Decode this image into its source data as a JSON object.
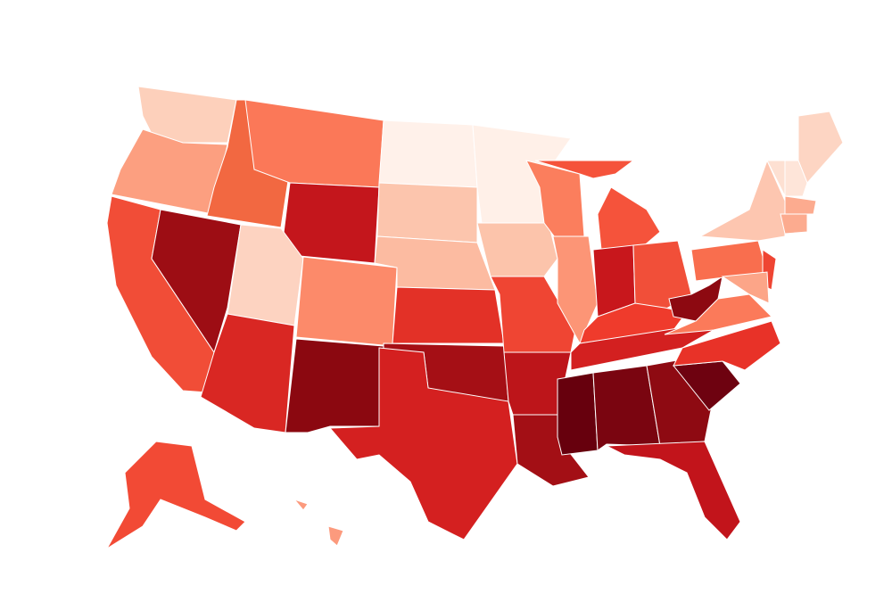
{
  "map": {
    "background": "#ffffff",
    "border_color": "#ffffff",
    "regions": [
      {
        "color": "#fdd0bb"
      },
      {
        "color": "#fc9f80"
      },
      {
        "color": "#f14d37"
      },
      {
        "color": "#9d0d14"
      },
      {
        "color": "#f26841"
      },
      {
        "color": "#fb7858"
      },
      {
        "color": "#c4161c"
      },
      {
        "color": "#fdd3c1"
      },
      {
        "color": "#fc8a6a"
      },
      {
        "color": "#d92723"
      },
      {
        "color": "#8b0810"
      },
      {
        "color": "#fff1ea"
      },
      {
        "color": "#fcc5ad"
      },
      {
        "color": "#fcbba1"
      },
      {
        "color": "#e33127"
      },
      {
        "color": "#a50f15"
      },
      {
        "color": "#d42020"
      },
      {
        "color": "#fff0e8"
      },
      {
        "color": "#fcc4ab"
      },
      {
        "color": "#ef4533"
      },
      {
        "color": "#bd151a"
      },
      {
        "color": "#a30f15"
      },
      {
        "color": "#fb7e5d"
      },
      {
        "color": "#fc9576"
      },
      {
        "color": "#f5533b"
      },
      {
        "color": "#c8171c"
      },
      {
        "color": "#f14f39"
      },
      {
        "color": "#ef3b2c"
      },
      {
        "color": "#d32020"
      },
      {
        "color": "#67000d"
      },
      {
        "color": "#7a0510"
      },
      {
        "color": "#8e0a12"
      },
      {
        "color": "#6e0210"
      },
      {
        "color": "#e83228"
      },
      {
        "color": "#c2141b"
      },
      {
        "color": "#fb7a5a"
      },
      {
        "color": "#8d0911"
      },
      {
        "color": "#f96e4e"
      },
      {
        "color": "#fdc6b0"
      },
      {
        "color": "#ef4533"
      },
      {
        "color": "#fca588"
      },
      {
        "color": "#fde0d2"
      },
      {
        "color": "#fdd5c3"
      },
      {
        "color": "#fee5d9"
      },
      {
        "color": "#fcab8f"
      },
      {
        "color": "#f24a35"
      },
      {
        "color": "#fc9a7d"
      }
    ]
  }
}
